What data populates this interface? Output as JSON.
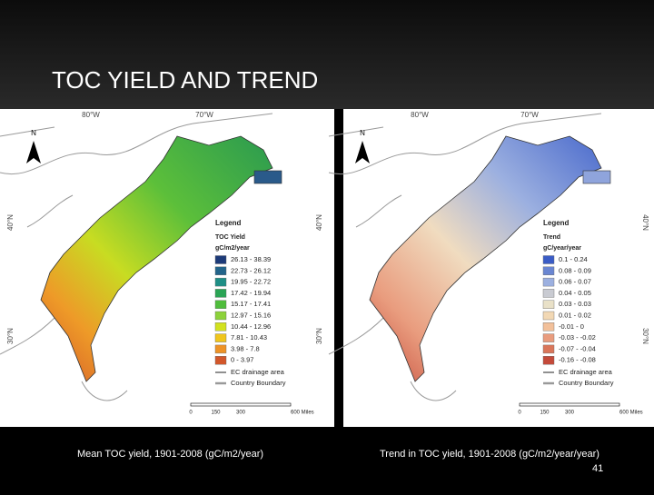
{
  "header": {
    "title": "TOC YIELD AND TREND"
  },
  "maps": [
    {
      "lon_labels": [
        "80°W",
        "70°W"
      ],
      "lat_labels": [
        "40°N",
        "30°N"
      ],
      "north": "N",
      "legend": {
        "title": "Legend",
        "subtitle": "TOC Yield",
        "unit": "gC/m2/year",
        "classes": [
          {
            "label": "26.13 - 38.39",
            "color": "#1d3a78"
          },
          {
            "label": "22.73 - 26.12",
            "color": "#23648a"
          },
          {
            "label": "19.95 - 22.72",
            "color": "#1f8f86"
          },
          {
            "label": "17.42 - 19.94",
            "color": "#2aa455"
          },
          {
            "label": "15.17 - 17.41",
            "color": "#4fbd3c"
          },
          {
            "label": "12.97 - 15.16",
            "color": "#8cd23a"
          },
          {
            "label": "10.44 - 12.96",
            "color": "#d2e21e"
          },
          {
            "label": "7.81 - 10.43",
            "color": "#f0c61c"
          },
          {
            "label": "3.98 - 7.8",
            "color": "#ee9326"
          },
          {
            "label": "0 - 3.97",
            "color": "#d2572a"
          }
        ],
        "lines": [
          "EC drainage area",
          "Country Boundary"
        ]
      },
      "scale": [
        "0",
        "150",
        "300",
        "600 Miles"
      ],
      "caption": "Mean TOC yield, 1901-2008 (gC/m2/year)"
    },
    {
      "lon_labels": [
        "80°W",
        "70°W"
      ],
      "lat_labels": [
        "40°N",
        "30°N"
      ],
      "lat_labels_right": [
        "40°N",
        "30°N"
      ],
      "north": "N",
      "legend": {
        "title": "Legend",
        "subtitle": "Trend",
        "unit": "gC/year/year",
        "classes": [
          {
            "label": "0.1 - 0.24",
            "color": "#3a5cc6"
          },
          {
            "label": "0.08 - 0.09",
            "color": "#6a86d2"
          },
          {
            "label": "0.06 - 0.07",
            "color": "#9cb0e0"
          },
          {
            "label": "0.04 - 0.05",
            "color": "#c9cbd2"
          },
          {
            "label": "0.03 - 0.03",
            "color": "#e9e1c8"
          },
          {
            "label": "0.01 - 0.02",
            "color": "#f2d8b4"
          },
          {
            "label": "-0.01 - 0",
            "color": "#f2c09a"
          },
          {
            "label": "-0.03 - -0.02",
            "color": "#e99c7e"
          },
          {
            "label": "-0.07 - -0.04",
            "color": "#da765a"
          },
          {
            "label": "-0.16 - -0.08",
            "color": "#c44a3a"
          }
        ],
        "lines": [
          "EC drainage area",
          "Country Boundary"
        ]
      },
      "scale": [
        "0",
        "150",
        "300",
        "600 Miles"
      ],
      "caption": "Trend in TOC yield, 1901-2008 (gC/m2/year/year)"
    }
  ],
  "page_number": "41"
}
